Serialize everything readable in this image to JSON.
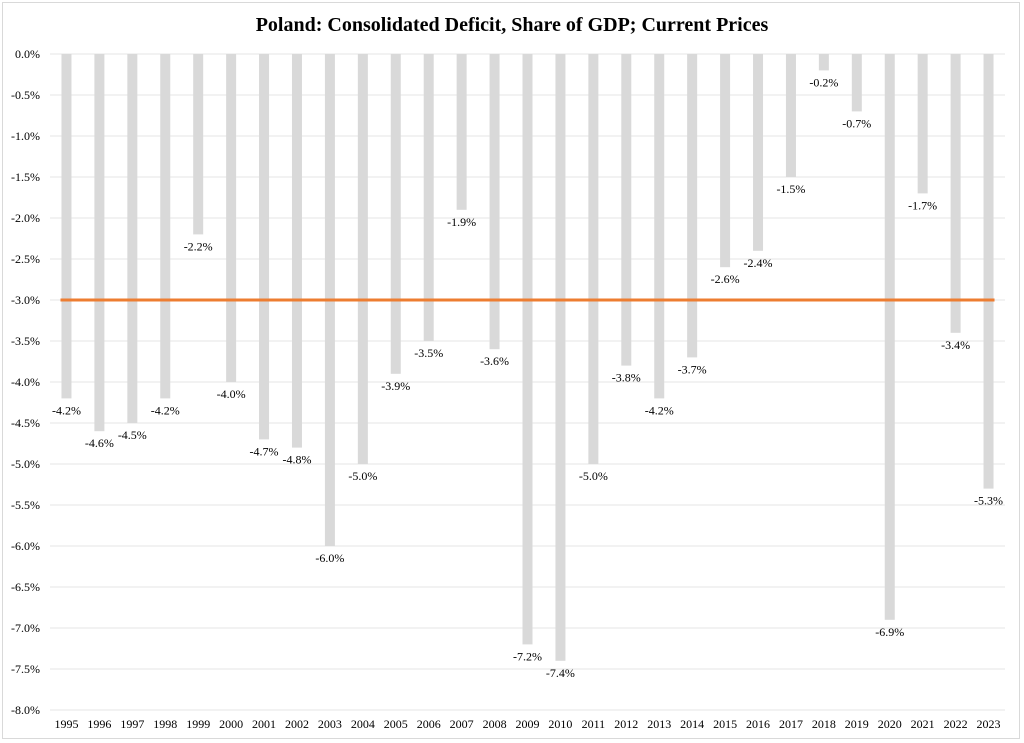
{
  "chart_data": {
    "type": "bar",
    "title": "Poland: Consolidated Deficit, Share of GDP; Current Prices",
    "xlabel": "",
    "ylabel": "",
    "ylim": [
      -8.0,
      0.0
    ],
    "ytick_step": 0.5,
    "ytick_format": "percent-1-decimal",
    "grid": true,
    "legend": "none",
    "categories": [
      "1995",
      "1996",
      "1997",
      "1998",
      "1999",
      "2000",
      "2001",
      "2002",
      "2003",
      "2004",
      "2005",
      "2006",
      "2007",
      "2008",
      "2009",
      "2010",
      "2011",
      "2012",
      "2013",
      "2014",
      "2015",
      "2016",
      "2017",
      "2018",
      "2019",
      "2020",
      "2021",
      "2022",
      "2023"
    ],
    "values": [
      -4.2,
      -4.6,
      -4.5,
      -4.2,
      -2.2,
      -4.0,
      -4.7,
      -4.8,
      -6.0,
      -5.0,
      -3.9,
      -3.5,
      -1.9,
      -3.6,
      -7.2,
      -7.4,
      -5.0,
      -3.8,
      -4.2,
      -3.7,
      -2.6,
      -2.4,
      -1.5,
      -0.2,
      -0.7,
      -6.9,
      -1.7,
      -3.4,
      -5.3
    ],
    "data_labels": [
      "-4.2%",
      "-4.6%",
      "-4.5%",
      "-4.2%",
      "-2.2%",
      "-4.0%",
      "-4.7%",
      "-4.8%",
      "-6.0%",
      "-5.0%",
      "-3.9%",
      "-3.5%",
      "-1.9%",
      "-3.6%",
      "-7.2%",
      "-7.4%",
      "-5.0%",
      "-3.8%",
      "-4.2%",
      "-3.7%",
      "-2.6%",
      "-2.4%",
      "-1.5%",
      "-0.2%",
      "-0.7%",
      "-6.9%",
      "-1.7%",
      "-3.4%",
      "-5.3%"
    ],
    "reference_line": {
      "value": -3.0
    },
    "colors": {
      "bar": "#d9d9d9",
      "reference_line": "#ed7d31",
      "grid": "#e6e6e6"
    }
  }
}
